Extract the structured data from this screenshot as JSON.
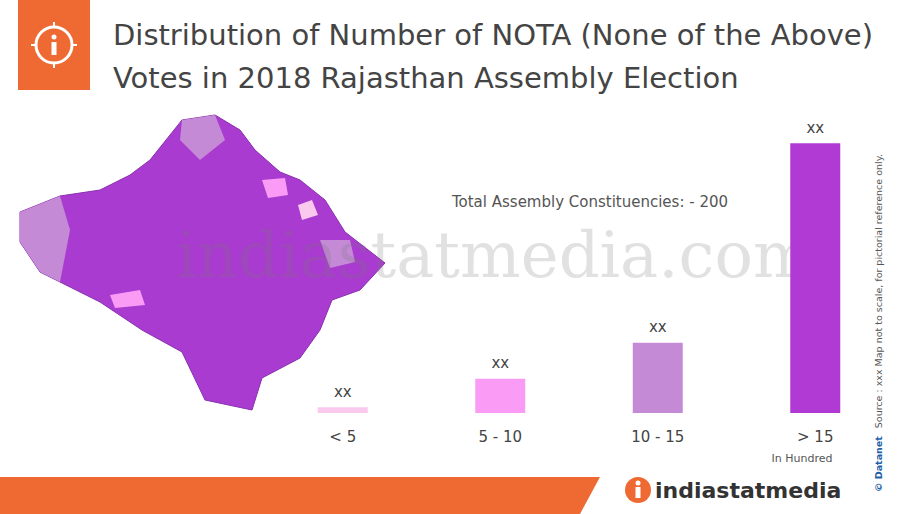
{
  "chart_data": {
    "type": "bar",
    "title": "Distribution of Number of NOTA (None of the Above) Votes in 2018 Rajasthan Assembly Election",
    "categories": [
      "< 5",
      "5 - 10",
      "10 - 15",
      "> 15"
    ],
    "values": [
      3,
      18,
      37,
      142
    ],
    "value_labels": [
      "xx",
      "xx",
      "xx",
      "xx"
    ],
    "colors": [
      "#fbc8ee",
      "#fa9cf6",
      "#c58ad6",
      "#b23ad4"
    ],
    "ylim": [
      0,
      150
    ],
    "x_label": "In Hundred",
    "annotations": [
      "Total Assembly Constituencies: - 200"
    ],
    "grid": false,
    "tick_labels": "x"
  },
  "page": {
    "watermark": "indiastatmedia.com",
    "credit": "© Datanet",
    "source": "Source : xxx  Map not to scale, for pictorial reference only.",
    "brand": "indiastatmedia"
  }
}
